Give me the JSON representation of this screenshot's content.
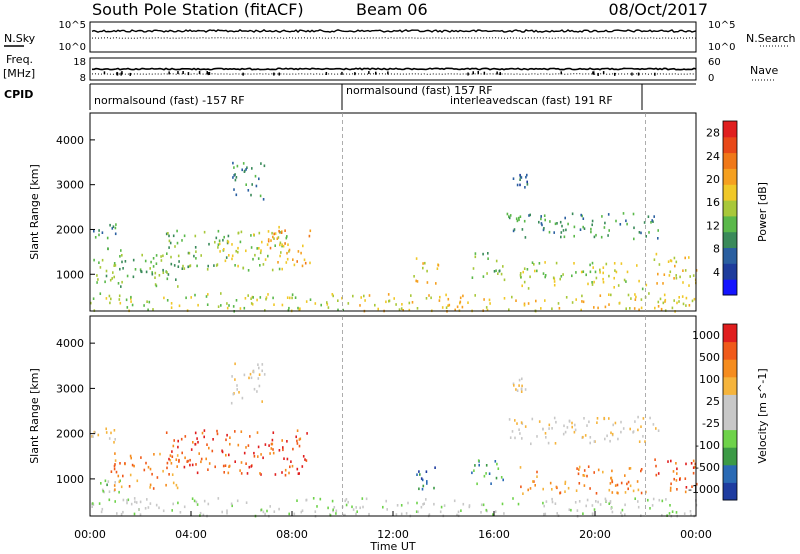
{
  "header": {
    "title": "South Pole Station (fitACF)",
    "beam": "Beam 06",
    "date": "08/Oct/2017"
  },
  "strip_nsky": {
    "left_label": "N.Sky",
    "right_label": "N.Search",
    "left_ticks": [
      "10^5",
      "10^0"
    ],
    "right_ticks": [
      "10^5",
      "10^0"
    ]
  },
  "strip_freq": {
    "left_label_line1": "Freq.",
    "left_label_line2": "[MHz]",
    "right_label": "Nave",
    "left_ticks": [
      "18",
      "8"
    ],
    "right_ticks": [
      "60",
      "0"
    ]
  },
  "cpid": {
    "label": "CPID",
    "segments": [
      {
        "text": "normalsound (fast) -157 RF",
        "start_h": 0,
        "end_h": 10
      },
      {
        "text": "normalsound (fast) 157 RF",
        "start_h": 10,
        "end_h": 22
      },
      {
        "text": "interleavedscan (fast) 191 RF",
        "start_h": 14.8,
        "end_h": 22
      }
    ]
  },
  "time_axis": {
    "label": "Time UT",
    "ticks": [
      "00:00",
      "04:00",
      "08:00",
      "12:00",
      "16:00",
      "20:00",
      "00:00"
    ]
  },
  "colors": {
    "power": [
      "#1414ff",
      "#1e3c9c",
      "#2a5fa0",
      "#3a8a5a",
      "#5ab84a",
      "#a8c83a",
      "#f0c828",
      "#f5a020",
      "#f07818",
      "#e84818",
      "#e01e1e"
    ],
    "velocity": [
      "#e01e1e",
      "#f05a1a",
      "#f58c1e",
      "#f5b43c",
      "#c8c8c8",
      "#c8c8c8",
      "#6ed24a",
      "#3c9a46",
      "#2a6ab4",
      "#1e3ca0"
    ]
  },
  "chart_data": [
    {
      "type": "heatmap",
      "name_id": "power",
      "ylabel": "Slant Range [km]",
      "xlim_hours": [
        0,
        24
      ],
      "ylim_km": [
        180,
        4600
      ],
      "yticks": [
        1000,
        2000,
        3000,
        4000
      ],
      "colorbar": {
        "label": "Power [dB]",
        "range": [
          0,
          30
        ],
        "ticks": [
          4,
          8,
          12,
          16,
          20,
          24,
          28
        ]
      },
      "dashed_lines_h": [
        10,
        22
      ],
      "regions": [
        {
          "t0": 0.0,
          "t1": 1.0,
          "r0": 1800,
          "r1": 2150,
          "level": 3
        },
        {
          "t0": 0.0,
          "t1": 3.5,
          "r0": 750,
          "r1": 1600,
          "level": 4
        },
        {
          "t0": 3.0,
          "t1": 5.5,
          "r0": 1100,
          "r1": 2000,
          "level": 4
        },
        {
          "t0": 5.0,
          "t1": 8.0,
          "r0": 1100,
          "r1": 2000,
          "level": 5
        },
        {
          "t0": 7.0,
          "t1": 8.7,
          "r0": 1200,
          "r1": 2100,
          "level": 7
        },
        {
          "t0": 5.5,
          "t1": 6.9,
          "r0": 2700,
          "r1": 3600,
          "level": 3
        },
        {
          "t0": 0.0,
          "t1": 10.0,
          "r0": 200,
          "r1": 600,
          "level": 5
        },
        {
          "t0": 12.8,
          "t1": 13.8,
          "r0": 800,
          "r1": 1400,
          "level": 6
        },
        {
          "t0": 15.0,
          "t1": 16.4,
          "r0": 900,
          "r1": 1500,
          "level": 4
        },
        {
          "t0": 16.7,
          "t1": 17.3,
          "r0": 2950,
          "r1": 3250,
          "level": 2
        },
        {
          "t0": 16.4,
          "t1": 22.5,
          "r0": 1800,
          "r1": 2400,
          "level": 3
        },
        {
          "t0": 17.0,
          "t1": 22.0,
          "r0": 700,
          "r1": 1300,
          "level": 5
        },
        {
          "t0": 22.3,
          "t1": 24.0,
          "r0": 700,
          "r1": 1500,
          "level": 6
        },
        {
          "t0": 10.0,
          "t1": 24.0,
          "r0": 200,
          "r1": 600,
          "level": 6
        }
      ]
    },
    {
      "type": "heatmap",
      "name_id": "velocity",
      "ylabel": "Slant Range [km]",
      "xlim_hours": [
        0,
        24
      ],
      "ylim_km": [
        180,
        4600
      ],
      "yticks": [
        1000,
        2000,
        3000,
        4000
      ],
      "colorbar": {
        "label": "Velocity [m s^-1]",
        "ticks": [
          1000,
          500,
          100,
          25,
          -25,
          -100,
          -500,
          -1000
        ]
      },
      "dashed_lines_h": [
        10,
        22
      ],
      "regions": [
        {
          "t0": 0.0,
          "t1": 1.0,
          "r0": 1800,
          "r1": 2150,
          "level": 4
        },
        {
          "t0": 0.0,
          "t1": 1.2,
          "r0": 700,
          "r1": 1000,
          "level": 6
        },
        {
          "t0": 0.8,
          "t1": 3.5,
          "r0": 750,
          "r1": 1600,
          "level": 2
        },
        {
          "t0": 3.0,
          "t1": 8.7,
          "r0": 1100,
          "r1": 2100,
          "level": 1
        },
        {
          "t0": 5.5,
          "t1": 6.9,
          "r0": 2700,
          "r1": 3600,
          "level": 4
        },
        {
          "t0": 0.0,
          "t1": 10.0,
          "r0": 200,
          "r1": 600,
          "level": 5
        },
        {
          "t0": 12.8,
          "t1": 13.8,
          "r0": 800,
          "r1": 1400,
          "level": 8
        },
        {
          "t0": 15.0,
          "t1": 16.4,
          "r0": 900,
          "r1": 1500,
          "level": 7
        },
        {
          "t0": 16.7,
          "t1": 17.3,
          "r0": 2950,
          "r1": 3250,
          "level": 4
        },
        {
          "t0": 16.4,
          "t1": 22.5,
          "r0": 1800,
          "r1": 2400,
          "level": 4
        },
        {
          "t0": 17.0,
          "t1": 22.0,
          "r0": 700,
          "r1": 1300,
          "level": 2
        },
        {
          "t0": 22.3,
          "t1": 24.0,
          "r0": 700,
          "r1": 1500,
          "level": 1
        },
        {
          "t0": 10.0,
          "t1": 24.0,
          "r0": 200,
          "r1": 600,
          "level": 5
        }
      ]
    }
  ]
}
